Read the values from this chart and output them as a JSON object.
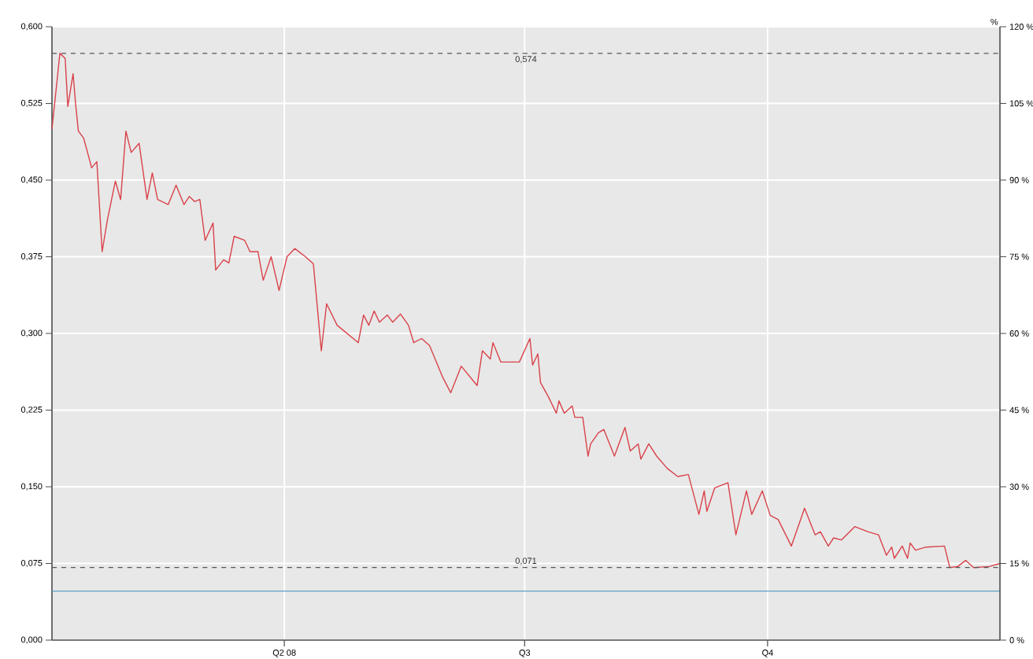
{
  "chart_data": {
    "type": "line",
    "y2label": "%",
    "xlim": [
      "2008-01-04",
      "2008-12-28"
    ],
    "xticks": [
      {
        "value": "2008-04-01",
        "label": "Q2 08"
      },
      {
        "value": "2008-07-01",
        "label": "Q3"
      },
      {
        "value": "2008-10-01",
        "label": "Q4"
      }
    ],
    "ylim": [
      0,
      0.6
    ],
    "yticks": [
      {
        "value": 0,
        "label": "0,000"
      },
      {
        "value": 0.075,
        "label": "0,075"
      },
      {
        "value": 0.15,
        "label": "0,150"
      },
      {
        "value": 0.225,
        "label": "0,225"
      },
      {
        "value": 0.3,
        "label": "0,300"
      },
      {
        "value": 0.375,
        "label": "0,375"
      },
      {
        "value": 0.45,
        "label": "0,450"
      },
      {
        "value": 0.525,
        "label": "0,525"
      },
      {
        "value": 0.6,
        "label": "0,600"
      }
    ],
    "y2lim": [
      0,
      120
    ],
    "y2ticks": [
      {
        "value": 0,
        "label": "0 %"
      },
      {
        "value": 15,
        "label": "15 %"
      },
      {
        "value": 30,
        "label": "30 %"
      },
      {
        "value": 45,
        "label": "45 %"
      },
      {
        "value": 60,
        "label": "60 %"
      },
      {
        "value": 75,
        "label": "75 %"
      },
      {
        "value": 90,
        "label": "90 %"
      },
      {
        "value": 105,
        "label": "105 %"
      },
      {
        "value": 120,
        "label": "120 %"
      }
    ],
    "grid": true,
    "ref_lines": [
      {
        "axis": "y",
        "value": 0.574,
        "label": "0,574",
        "color": "#555555",
        "line_style": "dashed"
      },
      {
        "axis": "y",
        "value": 0.071,
        "label": "0,071",
        "color": "#555555",
        "line_style": "dashed"
      },
      {
        "axis": "y",
        "value": 0.048,
        "color": "#5aa0c8",
        "line_style": "solid"
      }
    ],
    "series": [
      {
        "color": "#d9424a",
        "x": [
          "2008-01-04",
          "2008-01-06",
          "2008-01-07",
          "2008-01-09",
          "2008-01-10",
          "2008-01-12",
          "2008-01-13",
          "2008-01-14",
          "2008-01-16",
          "2008-01-18",
          "2008-01-19",
          "2008-01-21",
          "2008-01-23",
          "2008-01-25",
          "2008-01-28",
          "2008-01-30",
          "2008-02-01",
          "2008-02-03",
          "2008-02-06",
          "2008-02-09",
          "2008-02-11",
          "2008-02-13",
          "2008-02-17",
          "2008-02-20",
          "2008-02-23",
          "2008-02-25",
          "2008-02-27",
          "2008-02-29",
          "2008-03-02",
          "2008-03-05",
          "2008-03-06",
          "2008-03-09",
          "2008-03-11",
          "2008-03-13",
          "2008-03-17",
          "2008-03-19",
          "2008-03-22",
          "2008-03-24",
          "2008-03-27",
          "2008-03-30",
          "2008-04-02",
          "2008-04-05",
          "2008-04-09",
          "2008-04-12",
          "2008-04-15",
          "2008-04-17",
          "2008-04-21",
          "2008-04-29",
          "2008-05-01",
          "2008-05-03",
          "2008-05-05",
          "2008-05-07",
          "2008-05-10",
          "2008-05-12",
          "2008-05-15",
          "2008-05-18",
          "2008-05-20",
          "2008-05-23",
          "2008-05-26",
          "2008-05-31",
          "2008-06-03",
          "2008-06-07",
          "2008-06-13",
          "2008-06-15",
          "2008-06-18",
          "2008-06-19",
          "2008-06-22",
          "2008-06-26",
          "2008-06-29",
          "2008-07-03",
          "2008-07-04",
          "2008-07-06",
          "2008-07-07",
          "2008-07-10",
          "2008-07-13",
          "2008-07-14",
          "2008-07-16",
          "2008-07-19",
          "2008-07-20",
          "2008-07-23",
          "2008-07-25",
          "2008-07-26",
          "2008-07-29",
          "2008-07-31",
          "2008-08-04",
          "2008-08-08",
          "2008-08-10",
          "2008-08-13",
          "2008-08-14",
          "2008-08-17",
          "2008-08-20",
          "2008-08-24",
          "2008-08-28",
          "2008-09-01",
          "2008-09-05",
          "2008-09-07",
          "2008-09-08",
          "2008-09-11",
          "2008-09-16",
          "2008-09-19",
          "2008-09-23",
          "2008-09-25",
          "2008-09-29",
          "2008-10-02",
          "2008-10-05",
          "2008-10-10",
          "2008-10-15",
          "2008-10-19",
          "2008-10-21",
          "2008-10-24",
          "2008-10-26",
          "2008-10-29",
          "2008-11-03",
          "2008-11-08",
          "2008-11-12",
          "2008-11-15",
          "2008-11-17",
          "2008-11-18",
          "2008-11-21",
          "2008-11-23",
          "2008-11-24",
          "2008-11-26",
          "2008-11-30",
          "2008-12-07",
          "2008-12-09",
          "2008-12-12",
          "2008-12-15",
          "2008-12-18",
          "2008-12-24",
          "2008-12-28"
        ],
        "values": [
          0.5,
          0.549,
          0.574,
          0.569,
          0.522,
          0.554,
          0.523,
          0.498,
          0.491,
          0.472,
          0.462,
          0.468,
          0.38,
          0.411,
          0.449,
          0.431,
          0.498,
          0.477,
          0.486,
          0.431,
          0.457,
          0.431,
          0.426,
          0.445,
          0.426,
          0.434,
          0.429,
          0.431,
          0.391,
          0.408,
          0.362,
          0.372,
          0.369,
          0.395,
          0.391,
          0.38,
          0.38,
          0.352,
          0.375,
          0.342,
          0.375,
          0.383,
          0.375,
          0.368,
          0.283,
          0.329,
          0.308,
          0.291,
          0.318,
          0.308,
          0.322,
          0.311,
          0.318,
          0.311,
          0.319,
          0.308,
          0.291,
          0.295,
          0.288,
          0.257,
          0.242,
          0.268,
          0.249,
          0.283,
          0.275,
          0.291,
          0.272,
          0.272,
          0.272,
          0.295,
          0.269,
          0.28,
          0.252,
          0.238,
          0.222,
          0.234,
          0.222,
          0.229,
          0.218,
          0.218,
          0.18,
          0.192,
          0.203,
          0.206,
          0.18,
          0.208,
          0.185,
          0.192,
          0.177,
          0.192,
          0.18,
          0.168,
          0.16,
          0.162,
          0.123,
          0.146,
          0.126,
          0.149,
          0.154,
          0.103,
          0.146,
          0.123,
          0.146,
          0.122,
          0.118,
          0.092,
          0.129,
          0.103,
          0.106,
          0.092,
          0.1,
          0.098,
          0.111,
          0.106,
          0.103,
          0.083,
          0.091,
          0.08,
          0.092,
          0.08,
          0.095,
          0.088,
          0.091,
          0.092,
          0.071,
          0.072,
          0.078,
          0.071,
          0.072,
          0.075
        ]
      }
    ]
  }
}
